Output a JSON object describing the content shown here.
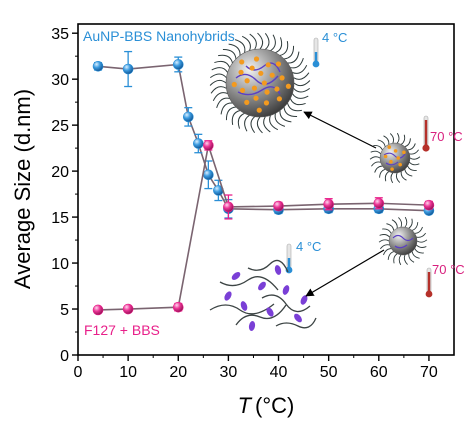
{
  "chart_data": {
    "type": "scatter",
    "title": "",
    "xlabel": "T (°C)",
    "xlabel_var": "T",
    "xlabel_unit": "(°C)",
    "ylabel": "Average Size (d.nm)",
    "xlim": [
      0,
      75
    ],
    "ylim": [
      0,
      36
    ],
    "xticks": [
      0,
      10,
      20,
      30,
      40,
      50,
      60,
      70
    ],
    "yticks": [
      0,
      5,
      10,
      15,
      20,
      25,
      30,
      35
    ],
    "grid": false,
    "series": [
      {
        "name": "AuNP-BBS Nanohybrids",
        "color": "#2a8fd6",
        "x": [
          4,
          10,
          20,
          22,
          24,
          26,
          28,
          30,
          40,
          50,
          60,
          70
        ],
        "y": [
          31.4,
          31.1,
          31.6,
          25.9,
          23.0,
          19.6,
          17.9,
          15.9,
          15.8,
          15.9,
          15.9,
          15.7
        ],
        "err": [
          0.4,
          1.9,
          0.8,
          1.0,
          1.0,
          1.5,
          1.1,
          1.0,
          0.4,
          0.4,
          0.4,
          0.3
        ]
      },
      {
        "name": "F127 + BBS",
        "color": "#e8208a",
        "x": [
          4,
          10,
          20,
          26,
          30,
          40,
          50,
          60,
          70
        ],
        "y": [
          4.9,
          5.0,
          5.2,
          22.8,
          16.1,
          16.2,
          16.4,
          16.5,
          16.3
        ],
        "err": [
          0.2,
          0.2,
          0.4,
          0.5,
          1.3,
          0.4,
          0.6,
          0.6,
          0.4
        ]
      }
    ],
    "annotations": {
      "temp_4c_top": "4 °C",
      "temp_70c_right": "70 °C",
      "temp_4c_mid": "4 °C",
      "temp_70c_bottom": "70 °C"
    },
    "colors": {
      "line": "#7a6470",
      "cold": "#2a8fd6",
      "hot": "#d8207e"
    }
  }
}
